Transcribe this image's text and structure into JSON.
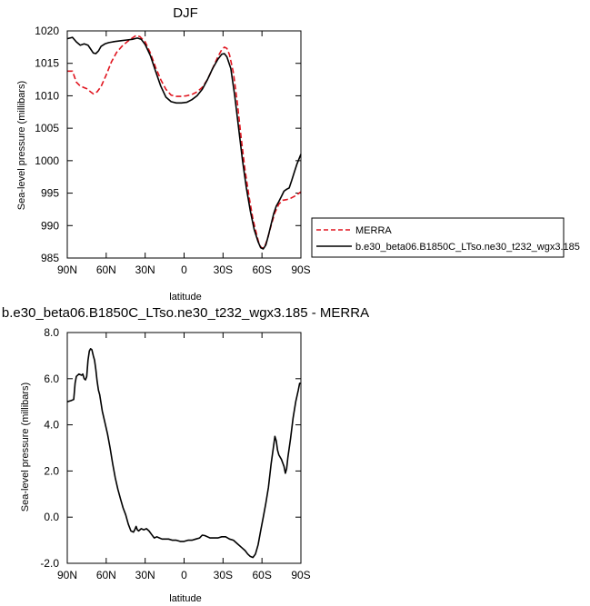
{
  "chart_data": [
    {
      "type": "line",
      "title": "DJF",
      "xlabel": "latitude",
      "ylabel": "Sea-level pressure (millibars)",
      "xlim": [
        90,
        -90
      ],
      "ylim": [
        985,
        1020
      ],
      "xticks": [
        90,
        60,
        30,
        0,
        -30,
        -60,
        -90
      ],
      "xtick_labels": [
        "90N",
        "60N",
        "30N",
        "0",
        "30S",
        "60S",
        "90S"
      ],
      "yticks": [
        985,
        990,
        995,
        1000,
        1005,
        1010,
        1015,
        1020
      ],
      "ytick_labels": [
        "985",
        "990",
        "995",
        "1000",
        "1005",
        "1010",
        "1015",
        "1020"
      ],
      "legend": {
        "placement": "outside-right"
      },
      "series": [
        {
          "name": "MERRA",
          "color": "#e0141e",
          "style": "dashed",
          "points": [
            [
              90,
              1013.8
            ],
            [
              86,
              1013.8
            ],
            [
              83,
              1012.1
            ],
            [
              80,
              1011.5
            ],
            [
              75,
              1011.1
            ],
            [
              72,
              1010.6
            ],
            [
              70,
              1010.3
            ],
            [
              67,
              1010.6
            ],
            [
              64,
              1011.4
            ],
            [
              60,
              1013.2
            ],
            [
              56,
              1015.2
            ],
            [
              52,
              1016.7
            ],
            [
              48,
              1017.6
            ],
            [
              44,
              1018.3
            ],
            [
              40,
              1018.9
            ],
            [
              37,
              1019.3
            ],
            [
              34,
              1019.1
            ],
            [
              30,
              1018.3
            ],
            [
              26,
              1016.6
            ],
            [
              22,
              1014.4
            ],
            [
              18,
              1012.5
            ],
            [
              14,
              1011.0
            ],
            [
              10,
              1010.1
            ],
            [
              6,
              1009.9
            ],
            [
              2,
              1009.9
            ],
            [
              -2,
              1010.0
            ],
            [
              -6,
              1010.2
            ],
            [
              -10,
              1010.6
            ],
            [
              -14,
              1011.3
            ],
            [
              -18,
              1012.5
            ],
            [
              -22,
              1014.2
            ],
            [
              -26,
              1016.0
            ],
            [
              -29,
              1017.1
            ],
            [
              -31,
              1017.5
            ],
            [
              -33,
              1017.3
            ],
            [
              -35,
              1016.3
            ],
            [
              -38,
              1013.5
            ],
            [
              -41,
              1009.0
            ],
            [
              -44,
              1003.5
            ],
            [
              -47,
              998.5
            ],
            [
              -50,
              994.5
            ],
            [
              -53,
              991.0
            ],
            [
              -56,
              988.5
            ],
            [
              -58,
              987.0
            ],
            [
              -60,
              986.5
            ],
            [
              -62,
              986.7
            ],
            [
              -64,
              987.8
            ],
            [
              -67,
              990.0
            ],
            [
              -70,
              992.0
            ],
            [
              -73,
              993.3
            ],
            [
              -76,
              993.9
            ],
            [
              -79,
              994.0
            ],
            [
              -82,
              994.2
            ],
            [
              -85,
              994.5
            ],
            [
              -88,
              994.9
            ],
            [
              -90,
              995.2
            ]
          ]
        },
        {
          "name": "b.e30_beta06.B1850C_LTso.ne30_t232_wgx3.185",
          "color": "#000000",
          "style": "solid",
          "points": [
            [
              90,
              1018.8
            ],
            [
              86,
              1019.0
            ],
            [
              83,
              1018.3
            ],
            [
              80,
              1017.8
            ],
            [
              77,
              1018.0
            ],
            [
              74,
              1017.8
            ],
            [
              72,
              1017.2
            ],
            [
              70,
              1016.6
            ],
            [
              68,
              1016.5
            ],
            [
              66,
              1016.9
            ],
            [
              64,
              1017.6
            ],
            [
              61,
              1018.0
            ],
            [
              58,
              1018.2
            ],
            [
              55,
              1018.3
            ],
            [
              52,
              1018.4
            ],
            [
              48,
              1018.5
            ],
            [
              44,
              1018.6
            ],
            [
              40,
              1018.7
            ],
            [
              36,
              1018.9
            ],
            [
              33,
              1018.7
            ],
            [
              30,
              1017.9
            ],
            [
              26,
              1016.2
            ],
            [
              22,
              1013.8
            ],
            [
              18,
              1011.5
            ],
            [
              14,
              1009.8
            ],
            [
              10,
              1009.1
            ],
            [
              6,
              1008.9
            ],
            [
              2,
              1008.9
            ],
            [
              -2,
              1009.0
            ],
            [
              -6,
              1009.4
            ],
            [
              -10,
              1010.0
            ],
            [
              -14,
              1011.0
            ],
            [
              -18,
              1012.5
            ],
            [
              -22,
              1014.2
            ],
            [
              -26,
              1015.6
            ],
            [
              -29,
              1016.4
            ],
            [
              -31,
              1016.5
            ],
            [
              -33,
              1016.0
            ],
            [
              -36,
              1014.2
            ],
            [
              -39,
              1010.0
            ],
            [
              -42,
              1005.0
            ],
            [
              -45,
              1000.0
            ],
            [
              -48,
              995.8
            ],
            [
              -51,
              992.3
            ],
            [
              -54,
              989.4
            ],
            [
              -57,
              987.5
            ],
            [
              -59,
              986.6
            ],
            [
              -61,
              986.4
            ],
            [
              -63,
              987.0
            ],
            [
              -65,
              988.5
            ],
            [
              -67,
              990.2
            ],
            [
              -69,
              991.8
            ],
            [
              -71,
              993.0
            ],
            [
              -73,
              993.7
            ],
            [
              -75,
              994.5
            ],
            [
              -77,
              995.3
            ],
            [
              -79,
              995.6
            ],
            [
              -81,
              995.8
            ],
            [
              -83,
              997.0
            ],
            [
              -85,
              998.3
            ],
            [
              -87,
              999.5
            ],
            [
              -90,
              1001.0
            ]
          ]
        }
      ]
    },
    {
      "type": "line",
      "title": "b.e30_beta06.B1850C_LTso.ne30_t232_wgx3.185 - MERRA",
      "xlabel": "latitude",
      "ylabel": "Sea-level pressure (millibars)",
      "xlim": [
        90,
        -90
      ],
      "ylim": [
        -2.0,
        8.0
      ],
      "xticks": [
        90,
        60,
        30,
        0,
        -30,
        -60,
        -90
      ],
      "xtick_labels": [
        "90N",
        "60N",
        "30N",
        "0",
        "30S",
        "60S",
        "90S"
      ],
      "yticks": [
        -2.0,
        0.0,
        2.0,
        4.0,
        6.0,
        8.0
      ],
      "ytick_labels": [
        "-2.0",
        "0.0",
        "2.0",
        "4.0",
        "6.0",
        "8.0"
      ],
      "series": [
        {
          "color": "#000000",
          "style": "solid",
          "points": [
            [
              90,
              5.0
            ],
            [
              87,
              5.05
            ],
            [
              85,
              5.1
            ],
            [
              84,
              5.8
            ],
            [
              83,
              6.1
            ],
            [
              81,
              6.2
            ],
            [
              79,
              6.15
            ],
            [
              78,
              6.2
            ],
            [
              77,
              6.0
            ],
            [
              76,
              5.95
            ],
            [
              75,
              6.1
            ],
            [
              74,
              6.8
            ],
            [
              73,
              7.2
            ],
            [
              72,
              7.3
            ],
            [
              71,
              7.25
            ],
            [
              70,
              7.0
            ],
            [
              69,
              6.8
            ],
            [
              68,
              6.4
            ],
            [
              67,
              5.9
            ],
            [
              66,
              5.5
            ],
            [
              65,
              5.3
            ],
            [
              63,
              4.6
            ],
            [
              61,
              4.1
            ],
            [
              59,
              3.6
            ],
            [
              57,
              3.0
            ],
            [
              55,
              2.3
            ],
            [
              53,
              1.7
            ],
            [
              51,
              1.2
            ],
            [
              49,
              0.8
            ],
            [
              47,
              0.4
            ],
            [
              45,
              0.1
            ],
            [
              43,
              -0.3
            ],
            [
              41,
              -0.6
            ],
            [
              39,
              -0.65
            ],
            [
              38,
              -0.55
            ],
            [
              37,
              -0.4
            ],
            [
              36,
              -0.55
            ],
            [
              35,
              -0.6
            ],
            [
              33,
              -0.5
            ],
            [
              31,
              -0.55
            ],
            [
              29,
              -0.5
            ],
            [
              27,
              -0.6
            ],
            [
              25,
              -0.75
            ],
            [
              23,
              -0.9
            ],
            [
              21,
              -0.85
            ],
            [
              19,
              -0.9
            ],
            [
              17,
              -0.95
            ],
            [
              15,
              -0.95
            ],
            [
              12,
              -0.95
            ],
            [
              9,
              -1.0
            ],
            [
              6,
              -1.0
            ],
            [
              3,
              -1.05
            ],
            [
              0,
              -1.05
            ],
            [
              -3,
              -1.0
            ],
            [
              -6,
              -1.0
            ],
            [
              -9,
              -0.95
            ],
            [
              -12,
              -0.9
            ],
            [
              -14,
              -0.78
            ],
            [
              -16,
              -0.8
            ],
            [
              -18,
              -0.85
            ],
            [
              -20,
              -0.9
            ],
            [
              -23,
              -0.9
            ],
            [
              -26,
              -0.9
            ],
            [
              -29,
              -0.85
            ],
            [
              -32,
              -0.85
            ],
            [
              -35,
              -0.95
            ],
            [
              -38,
              -1.0
            ],
            [
              -41,
              -1.15
            ],
            [
              -44,
              -1.3
            ],
            [
              -47,
              -1.45
            ],
            [
              -49,
              -1.6
            ],
            [
              -51,
              -1.7
            ],
            [
              -53,
              -1.75
            ],
            [
              -55,
              -1.6
            ],
            [
              -57,
              -1.2
            ],
            [
              -59,
              -0.6
            ],
            [
              -61,
              0.0
            ],
            [
              -63,
              0.6
            ],
            [
              -65,
              1.3
            ],
            [
              -67,
              2.3
            ],
            [
              -69,
              3.1
            ],
            [
              -70,
              3.5
            ],
            [
              -71,
              3.3
            ],
            [
              -72,
              2.9
            ],
            [
              -73,
              2.7
            ],
            [
              -75,
              2.5
            ],
            [
              -77,
              2.2
            ],
            [
              -78,
              1.9
            ],
            [
              -79,
              2.1
            ],
            [
              -80,
              2.6
            ],
            [
              -82,
              3.4
            ],
            [
              -84,
              4.3
            ],
            [
              -86,
              5.0
            ],
            [
              -88,
              5.5
            ],
            [
              -89,
              5.8
            ],
            [
              -90,
              5.8
            ]
          ]
        }
      ]
    }
  ]
}
